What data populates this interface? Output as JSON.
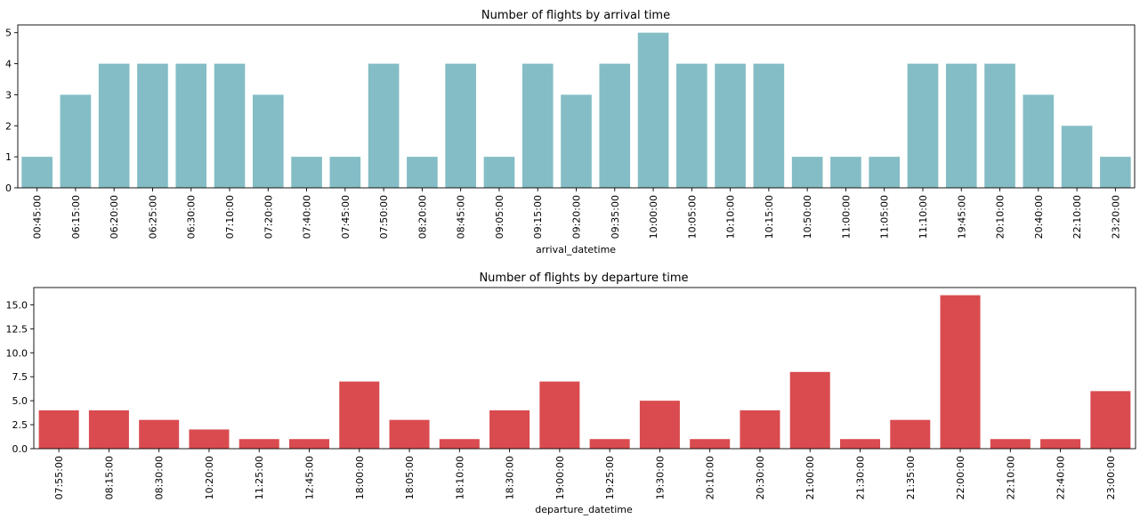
{
  "chart_data": [
    {
      "type": "bar",
      "title": "Number of flights by arrival time",
      "xlabel": "arrival_datetime",
      "ylabel": "",
      "ylim": [
        0,
        5.25
      ],
      "yticks": [
        "0",
        "1",
        "2",
        "3",
        "4",
        "5"
      ],
      "ytick_values": [
        0,
        1,
        2,
        3,
        4,
        5
      ],
      "color": "#84bdc5",
      "categories": [
        "00:45:00",
        "06:15:00",
        "06:20:00",
        "06:25:00",
        "06:30:00",
        "07:10:00",
        "07:20:00",
        "07:40:00",
        "07:45:00",
        "07:50:00",
        "08:20:00",
        "08:45:00",
        "09:05:00",
        "09:15:00",
        "09:20:00",
        "09:35:00",
        "10:00:00",
        "10:05:00",
        "10:10:00",
        "10:15:00",
        "10:50:00",
        "11:00:00",
        "11:05:00",
        "11:10:00",
        "19:45:00",
        "20:10:00",
        "20:40:00",
        "22:10:00",
        "23:20:00"
      ],
      "values": [
        1,
        3,
        4,
        4,
        4,
        4,
        3,
        1,
        1,
        4,
        1,
        4,
        1,
        4,
        3,
        4,
        5,
        4,
        4,
        4,
        1,
        1,
        1,
        4,
        4,
        4,
        3,
        2,
        1
      ]
    },
    {
      "type": "bar",
      "title": "Number of flights by departure time",
      "xlabel": "departure_datetime",
      "ylabel": "",
      "ylim": [
        0,
        16.8
      ],
      "yticks": [
        "0.0",
        "2.5",
        "5.0",
        "7.5",
        "10.0",
        "12.5",
        "15.0"
      ],
      "ytick_values": [
        0,
        2.5,
        5,
        7.5,
        10,
        12.5,
        15
      ],
      "color": "#d94b4f",
      "categories": [
        "07:55:00",
        "08:15:00",
        "08:30:00",
        "10:20:00",
        "11:25:00",
        "12:45:00",
        "18:00:00",
        "18:05:00",
        "18:10:00",
        "18:30:00",
        "19:00:00",
        "19:25:00",
        "19:30:00",
        "20:10:00",
        "20:30:00",
        "21:00:00",
        "21:30:00",
        "21:35:00",
        "22:00:00",
        "22:10:00",
        "22:40:00",
        "23:00:00"
      ],
      "values": [
        4,
        4,
        3,
        2,
        1,
        1,
        7,
        3,
        1,
        4,
        7,
        1,
        5,
        1,
        4,
        8,
        1,
        3,
        16,
        1,
        1,
        6
      ]
    }
  ]
}
